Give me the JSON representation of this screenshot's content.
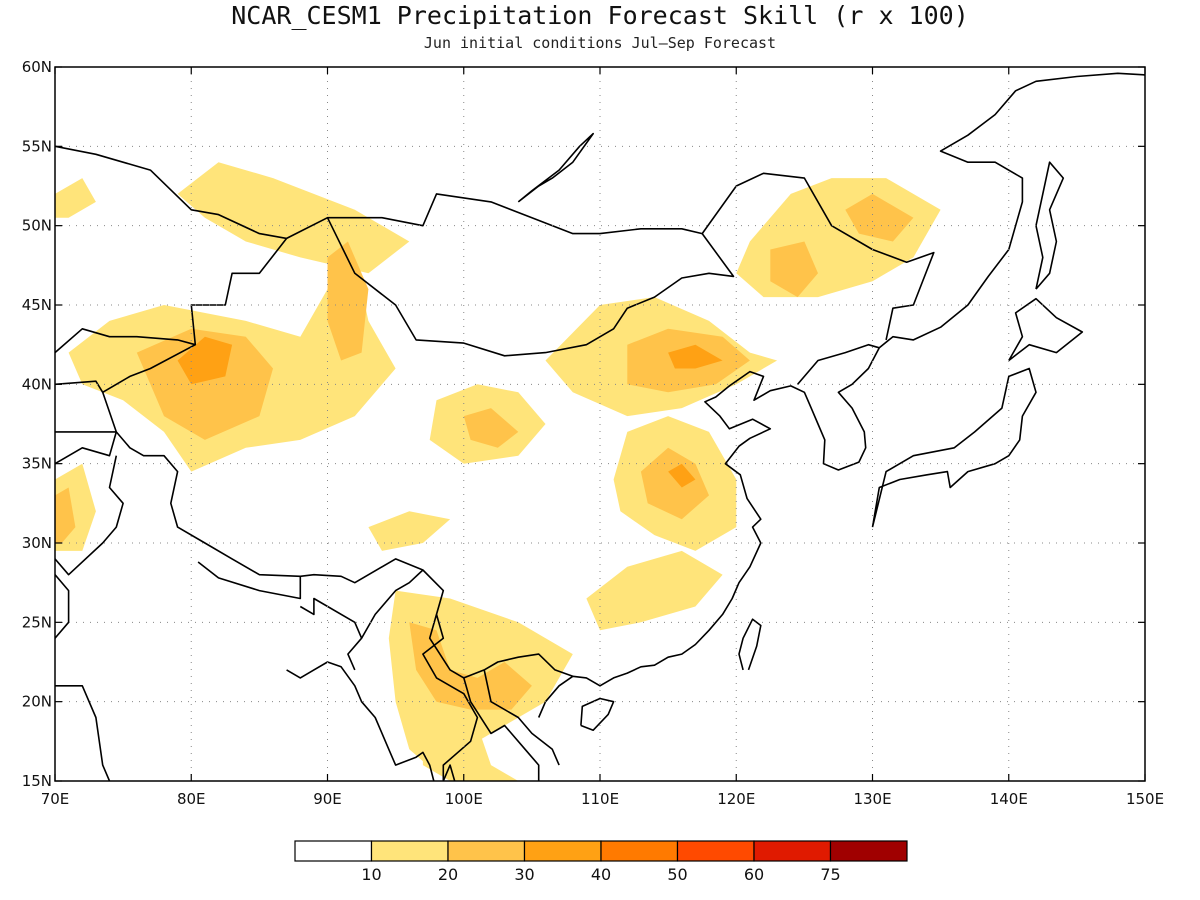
{
  "title": "NCAR_CESM1 Precipitation Forecast Skill (r x 100)",
  "subtitle": "Jun initial conditions  Jul–Sep Forecast",
  "map": {
    "lon_range": [
      70,
      150
    ],
    "lat_range": [
      15,
      60
    ],
    "lon_ticks": [
      70,
      80,
      90,
      100,
      110,
      120,
      130,
      140,
      150
    ],
    "lon_labels": [
      "70E",
      "80E",
      "90E",
      "100E",
      "110E",
      "120E",
      "130E",
      "140E",
      "150E"
    ],
    "lat_ticks": [
      15,
      20,
      25,
      30,
      35,
      40,
      45,
      50,
      55,
      60
    ],
    "lat_labels": [
      "15N",
      "20N",
      "25N",
      "30N",
      "35N",
      "40N",
      "45N",
      "50N",
      "55N",
      "60N"
    ],
    "grid": "dotted"
  },
  "colorbar": {
    "colors": [
      "#ffffff",
      "#ffe47a",
      "#ffc34a",
      "#ffa114",
      "#ff7a00",
      "#ff4a00",
      "#e01a00",
      "#a00000"
    ],
    "labels": [
      "10",
      "20",
      "30",
      "40",
      "50",
      "60",
      "75"
    ]
  },
  "skill_regions": [
    {
      "level": 1,
      "lonlat": [
        [
          70,
          52
        ],
        [
          72,
          53
        ],
        [
          73,
          51.5
        ],
        [
          71,
          50.5
        ],
        [
          70,
          50.5
        ]
      ]
    },
    {
      "level": 1,
      "lonlat": [
        [
          79,
          52
        ],
        [
          82,
          54
        ],
        [
          86,
          53
        ],
        [
          92,
          51
        ],
        [
          96,
          49
        ],
        [
          93,
          47
        ],
        [
          88,
          48
        ],
        [
          84,
          49
        ],
        [
          81,
          50.5
        ]
      ]
    },
    {
      "level": 1,
      "lonlat": [
        [
          71,
          42
        ],
        [
          74,
          44
        ],
        [
          78,
          45
        ],
        [
          84,
          44
        ],
        [
          88,
          43
        ],
        [
          90,
          46
        ],
        [
          92,
          48
        ],
        [
          93,
          44
        ],
        [
          95,
          41
        ],
        [
          92,
          38
        ],
        [
          88,
          36.5
        ],
        [
          84,
          36
        ],
        [
          80,
          34.5
        ],
        [
          78,
          37
        ],
        [
          75,
          39
        ],
        [
          72,
          40
        ]
      ]
    },
    {
      "level": 2,
      "lonlat": [
        [
          76,
          42
        ],
        [
          80,
          43.5
        ],
        [
          84,
          43
        ],
        [
          86,
          41
        ],
        [
          85,
          38
        ],
        [
          81,
          36.5
        ],
        [
          78,
          38
        ],
        [
          77,
          40
        ]
      ]
    },
    {
      "level": 3,
      "lonlat": [
        [
          79,
          41.5
        ],
        [
          81,
          43
        ],
        [
          83,
          42.5
        ],
        [
          82.5,
          40.5
        ],
        [
          80,
          40
        ]
      ]
    },
    {
      "level": 2,
      "lonlat": [
        [
          90,
          48
        ],
        [
          91.5,
          49
        ],
        [
          93,
          46
        ],
        [
          92.5,
          42
        ],
        [
          91,
          41.5
        ],
        [
          90,
          44
        ]
      ]
    },
    {
      "level": 1,
      "lonlat": [
        [
          70,
          34
        ],
        [
          72,
          35
        ],
        [
          73,
          32
        ],
        [
          72,
          29.5
        ],
        [
          70,
          29.5
        ]
      ]
    },
    {
      "level": 2,
      "lonlat": [
        [
          70,
          33
        ],
        [
          71,
          33.5
        ],
        [
          71.5,
          31
        ],
        [
          70.5,
          30
        ],
        [
          70,
          30
        ]
      ]
    },
    {
      "level": 1,
      "lonlat": [
        [
          98,
          39
        ],
        [
          101,
          40
        ],
        [
          104,
          39.5
        ],
        [
          106,
          37.5
        ],
        [
          104,
          35.5
        ],
        [
          100,
          35
        ],
        [
          97.5,
          36.5
        ]
      ]
    },
    {
      "level": 2,
      "lonlat": [
        [
          100,
          38
        ],
        [
          102,
          38.5
        ],
        [
          104,
          37
        ],
        [
          102.5,
          36
        ],
        [
          100.5,
          36.5
        ]
      ]
    },
    {
      "level": 1,
      "lonlat": [
        [
          106,
          41.5
        ],
        [
          110,
          45
        ],
        [
          114,
          45.5
        ],
        [
          118,
          44
        ],
        [
          121,
          42
        ],
        [
          123,
          41.5
        ],
        [
          120,
          40
        ],
        [
          116,
          38.5
        ],
        [
          112,
          38
        ],
        [
          108,
          39.5
        ]
      ]
    },
    {
      "level": 2,
      "lonlat": [
        [
          112,
          42.5
        ],
        [
          115,
          43.5
        ],
        [
          119,
          43
        ],
        [
          121,
          41.5
        ],
        [
          118.5,
          40
        ],
        [
          115,
          39.5
        ],
        [
          112,
          40
        ]
      ]
    },
    {
      "level": 3,
      "lonlat": [
        [
          115,
          42
        ],
        [
          117,
          42.5
        ],
        [
          119,
          41.5
        ],
        [
          117,
          41
        ],
        [
          115.5,
          41
        ]
      ]
    },
    {
      "level": 1,
      "lonlat": [
        [
          121,
          49
        ],
        [
          124,
          52
        ],
        [
          127,
          53
        ],
        [
          131,
          53
        ],
        [
          135,
          51
        ],
        [
          133,
          48
        ],
        [
          130,
          46.5
        ],
        [
          126,
          45.5
        ],
        [
          122,
          45.5
        ],
        [
          120,
          47
        ]
      ]
    },
    {
      "level": 2,
      "lonlat": [
        [
          122.5,
          48.5
        ],
        [
          125,
          49
        ],
        [
          126,
          47
        ],
        [
          124.5,
          45.5
        ],
        [
          122.5,
          46.5
        ]
      ]
    },
    {
      "level": 2,
      "lonlat": [
        [
          128,
          51
        ],
        [
          130,
          52
        ],
        [
          133,
          50.5
        ],
        [
          131.5,
          49
        ],
        [
          129,
          49.5
        ]
      ]
    },
    {
      "level": 1,
      "lonlat": [
        [
          111,
          34
        ],
        [
          112,
          37
        ],
        [
          115,
          38
        ],
        [
          118,
          37
        ],
        [
          120,
          34
        ],
        [
          120,
          31
        ],
        [
          117,
          29.5
        ],
        [
          114,
          30.5
        ],
        [
          111.5,
          32
        ]
      ]
    },
    {
      "level": 2,
      "lonlat": [
        [
          113,
          34.5
        ],
        [
          115,
          36
        ],
        [
          117,
          35
        ],
        [
          118,
          33
        ],
        [
          116,
          31.5
        ],
        [
          113.5,
          32.5
        ]
      ]
    },
    {
      "level": 3,
      "lonlat": [
        [
          115,
          34.5
        ],
        [
          116,
          35
        ],
        [
          117,
          34
        ],
        [
          116,
          33.5
        ]
      ]
    },
    {
      "level": 1,
      "lonlat": [
        [
          93,
          31
        ],
        [
          96,
          32
        ],
        [
          99,
          31.5
        ],
        [
          97,
          30
        ],
        [
          94,
          29.5
        ]
      ]
    },
    {
      "level": 1,
      "lonlat": [
        [
          109,
          26.5
        ],
        [
          112,
          28.5
        ],
        [
          116,
          29.5
        ],
        [
          119,
          28
        ],
        [
          117,
          26
        ],
        [
          113,
          25
        ],
        [
          110,
          24.5
        ]
      ]
    },
    {
      "level": 1,
      "lonlat": [
        [
          95,
          27
        ],
        [
          99,
          26.5
        ],
        [
          104,
          25
        ],
        [
          108,
          23
        ],
        [
          106,
          20
        ],
        [
          103,
          18.5
        ],
        [
          100,
          17
        ],
        [
          98,
          15.5
        ],
        [
          96,
          17
        ],
        [
          95,
          20
        ],
        [
          94.5,
          24
        ]
      ]
    },
    {
      "level": 2,
      "lonlat": [
        [
          96,
          25
        ],
        [
          98,
          24.5
        ],
        [
          99,
          22
        ],
        [
          101,
          21.5
        ],
        [
          103,
          22.5
        ],
        [
          105,
          21
        ],
        [
          103.5,
          19.5
        ],
        [
          100.5,
          19.5
        ],
        [
          98,
          20
        ],
        [
          96.5,
          22
        ]
      ]
    },
    {
      "level": 1,
      "lonlat": [
        [
          97,
          18
        ],
        [
          99,
          19.5
        ],
        [
          101,
          18.5
        ],
        [
          102,
          16
        ],
        [
          104,
          15
        ],
        [
          99,
          15
        ],
        [
          97,
          16
        ]
      ]
    }
  ]
}
